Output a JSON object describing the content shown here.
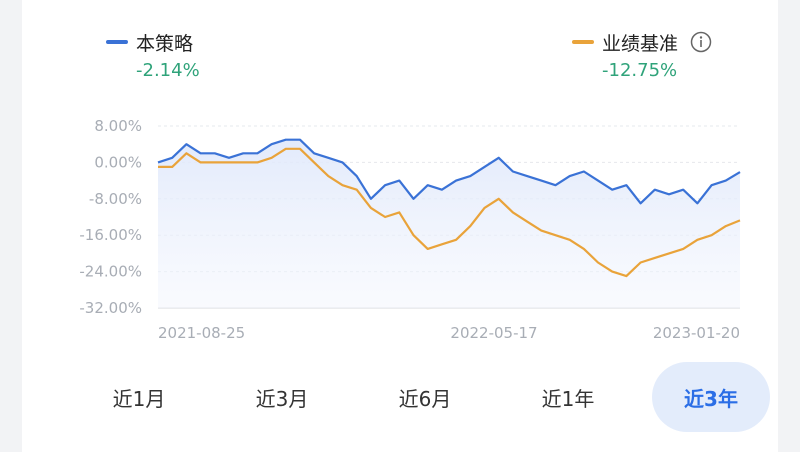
{
  "legend": {
    "strategy": {
      "name": "本策略",
      "value": "-2.14%",
      "color": "#3a72d6"
    },
    "benchmark": {
      "name": "业绩基准",
      "value": "-12.75%",
      "color": "#e9a33a"
    },
    "info_icon": "info-circle-icon"
  },
  "chart_data": {
    "type": "line",
    "ylim": [
      -32,
      8
    ],
    "yticks": [
      "8.00%",
      "0.00%",
      "-8.00%",
      "-16.00%",
      "-24.00%",
      "-32.00%"
    ],
    "x_labels": [
      "2021-08-25",
      "2022-05-17",
      "2023-01-20"
    ],
    "series": [
      {
        "name": "本策略",
        "color": "#3a72d6",
        "values": [
          0,
          1,
          4,
          2,
          2,
          1,
          2,
          2,
          4,
          5,
          5,
          2,
          1,
          0,
          -3,
          -8,
          -5,
          -4,
          -8,
          -5,
          -6,
          -4,
          -3,
          -1,
          1,
          -2,
          -3,
          -4,
          -5,
          -3,
          -2,
          -4,
          -6,
          -5,
          -9,
          -6,
          -7,
          -6,
          -9,
          -5,
          -4,
          -2.14
        ]
      },
      {
        "name": "业绩基准",
        "color": "#e9a33a",
        "values": [
          -1,
          -1,
          2,
          0,
          0,
          0,
          0,
          0,
          1,
          3,
          3,
          0,
          -3,
          -5,
          -6,
          -10,
          -12,
          -11,
          -16,
          -19,
          -18,
          -17,
          -14,
          -10,
          -8,
          -11,
          -13,
          -15,
          -16,
          -17,
          -19,
          -22,
          -24,
          -25,
          -22,
          -21,
          -20,
          -19,
          -17,
          -16,
          -14,
          -12.75
        ]
      }
    ]
  },
  "tabs": [
    {
      "label": "近1月",
      "active": false
    },
    {
      "label": "近3月",
      "active": false
    },
    {
      "label": "近6月",
      "active": false
    },
    {
      "label": "近1年",
      "active": false
    },
    {
      "label": "近3年",
      "active": true
    }
  ]
}
